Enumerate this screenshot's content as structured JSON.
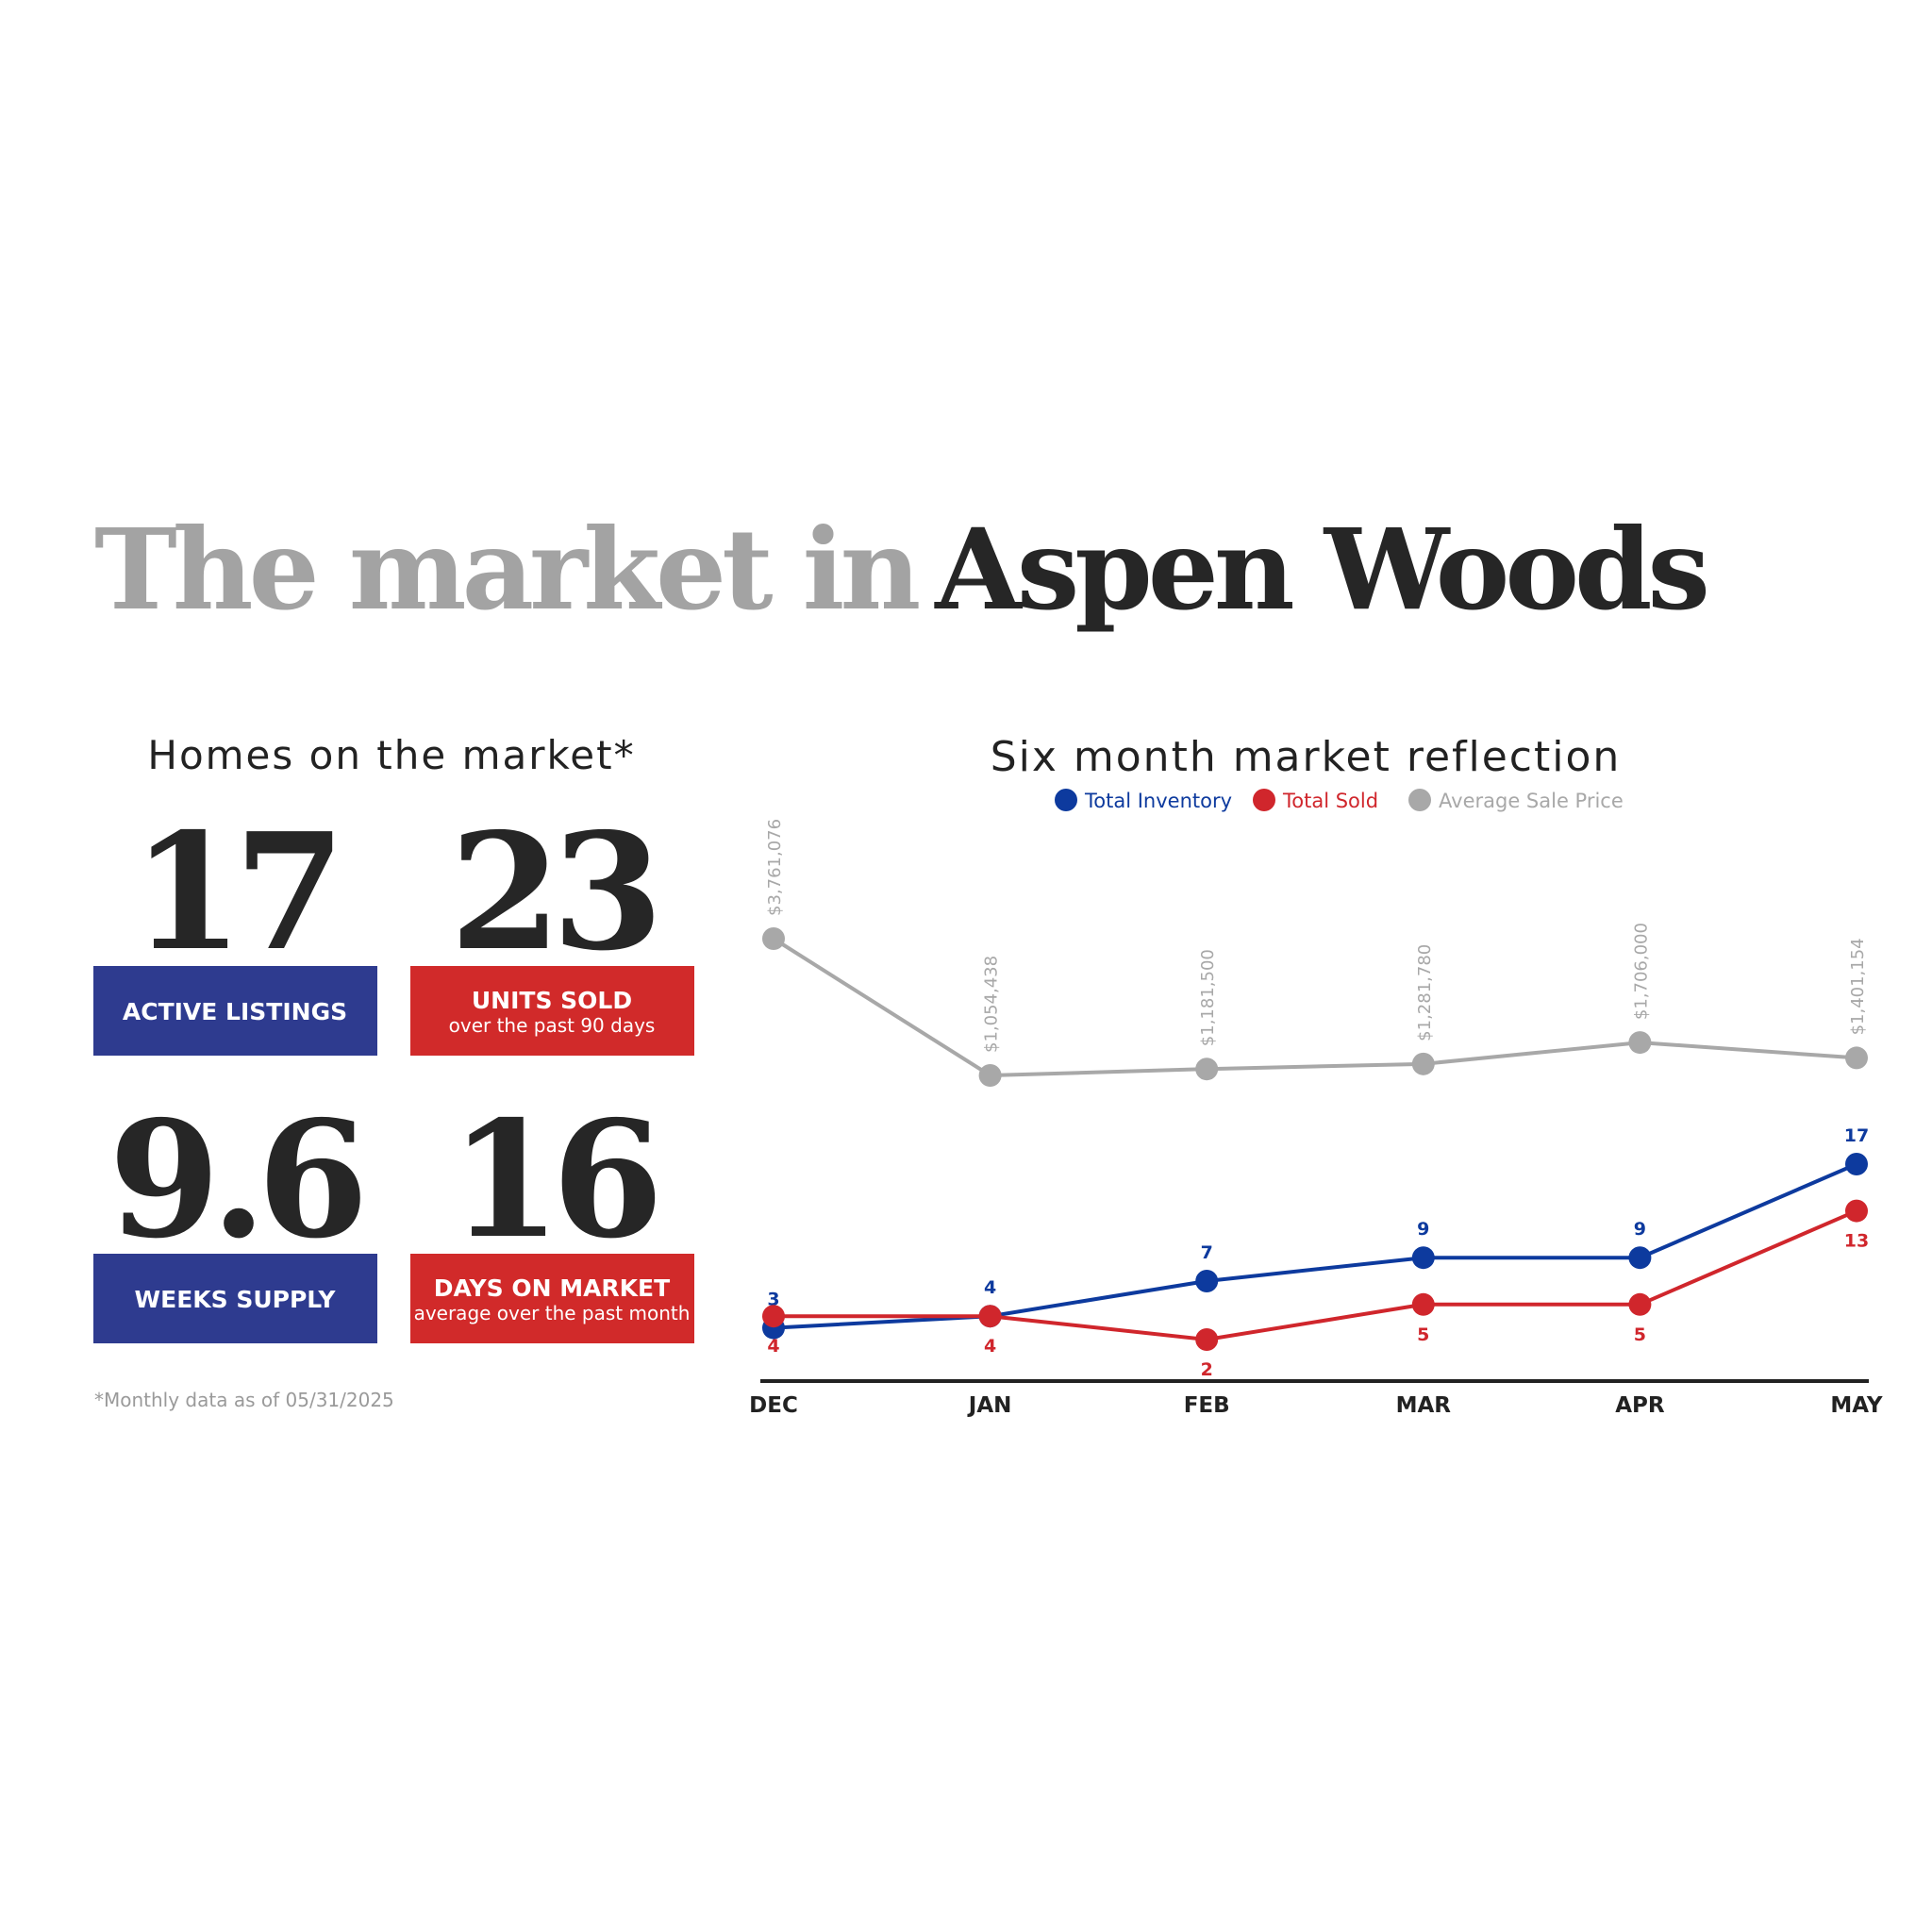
{
  "header": {
    "title_light": "The market in",
    "title_bold": "Aspen Woods"
  },
  "stats": {
    "title": "Homes on the market*",
    "items": [
      {
        "value": 17,
        "label": "ACTIVE LISTINGS"
      },
      {
        "value": 23,
        "label": "UNITS SOLD",
        "sublabel": "over the past 90 days"
      },
      {
        "value": 9.6,
        "label": "WEEKS SUPPLY"
      },
      {
        "value": 16,
        "label": "DAYS ON MARKET",
        "sublabel": "average over the past month"
      }
    ],
    "footnote": "*Monthly data as of 05/31/2025"
  },
  "chart_data": {
    "type": "line",
    "title": "Six month market reflection",
    "categories": [
      "DEC",
      "JAN",
      "FEB",
      "MAR",
      "APR",
      "MAY"
    ],
    "series": [
      {
        "name": "Total Inventory",
        "color": "#0d3a9e",
        "values": [
          3,
          4,
          7,
          9,
          9,
          17
        ]
      },
      {
        "name": "Total Sold",
        "color": "#d0262c",
        "values": [
          4,
          4,
          2,
          5,
          5,
          13
        ]
      },
      {
        "name": "Average Sale Price",
        "color": "#a8a8a8",
        "values": [
          3761076,
          1054438,
          1181500,
          1281780,
          1706000,
          1401154
        ],
        "value_labels": [
          "$3,761,076",
          "$1,054,438",
          "$1,181,500",
          "$1,281,780",
          "$1,706,000",
          "$1,401,154"
        ]
      }
    ]
  }
}
